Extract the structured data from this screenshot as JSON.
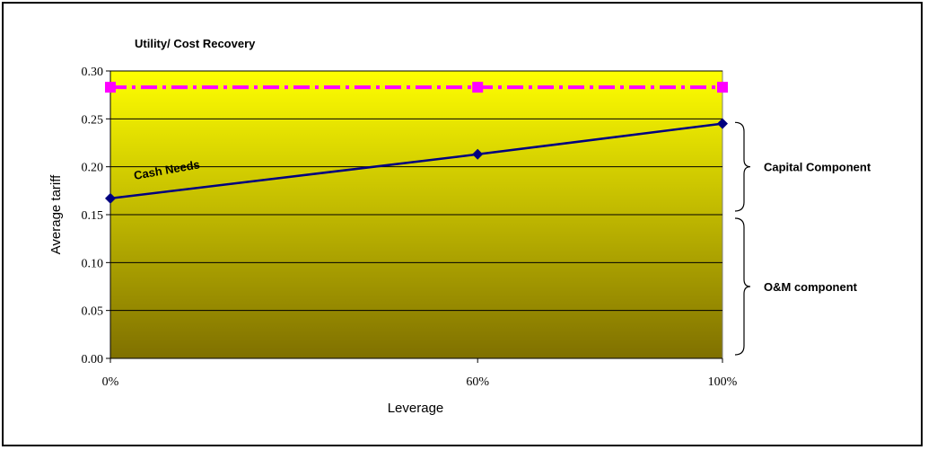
{
  "chart_data": {
    "type": "line",
    "title": "Utility/ Cost Recovery",
    "xlabel": "Leverage",
    "ylabel": "Average tariff",
    "categories": [
      "0%",
      "60%",
      "100%"
    ],
    "x": [
      0,
      60,
      100
    ],
    "y_ticks": [
      "0.00",
      "0.05",
      "0.10",
      "0.15",
      "0.20",
      "0.25",
      "0.30"
    ],
    "ylim": [
      0,
      0.3
    ],
    "grid": true,
    "series": [
      {
        "name": "Cash Needs",
        "values": [
          0.167,
          0.213,
          0.245
        ],
        "color": "#00007F",
        "marker": "diamond",
        "line": "solid"
      },
      {
        "values": [
          0.283,
          0.283,
          0.283
        ],
        "color": "#FF00FF",
        "marker": "square",
        "line": "dash-dot"
      }
    ],
    "annotations": [
      {
        "text": "Capital Component",
        "from": 0.15,
        "to": 0.25
      },
      {
        "text": "O&M component",
        "from": 0.0,
        "to": 0.15
      }
    ],
    "colors": {
      "plot_top": "#FFFF00",
      "plot_bottom": "#7F7000"
    }
  }
}
